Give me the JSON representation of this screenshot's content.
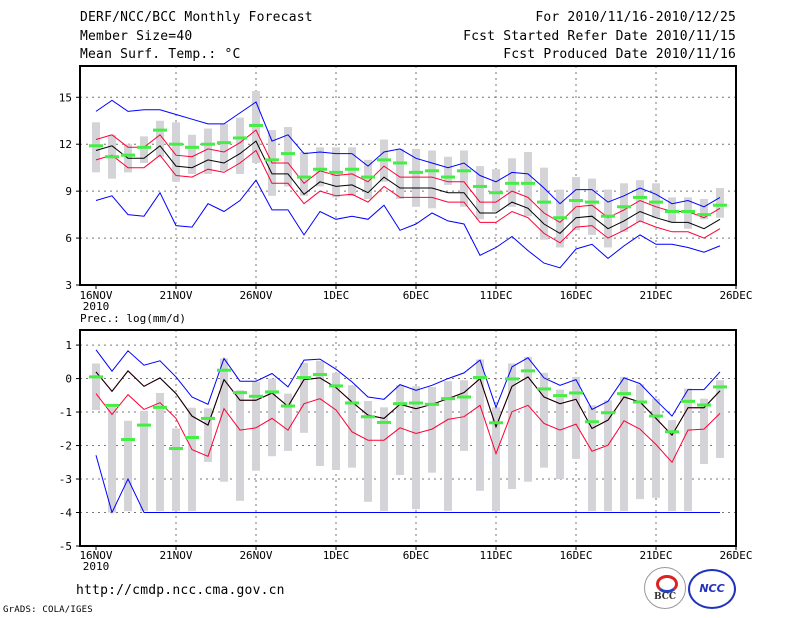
{
  "header": {
    "title": "DERF/NCC/BCC Monthly Forecast",
    "member_size": "Member Size=40",
    "variable": "Mean Surf. Temp.: °C",
    "period": "For 2010/11/16-2010/12/25",
    "fcst_started": "Fcst Started Refer Date 2010/11/15",
    "fcst_produced": "Fcst Produced Date 2010/11/16"
  },
  "footer": {
    "url": "http://cmdp.ncc.cma.gov.cn",
    "credit": "GrADS: COLA/IGES",
    "logo_bcc": "BCC",
    "logo_ncc": "NCC"
  },
  "colors": {
    "envelope": "#0000ff",
    "spread": "#ff0033",
    "mean": "#000000",
    "control": "#44ee44",
    "box": "#d3d3d8",
    "grid": "#777777"
  },
  "chart_data": [
    {
      "type": "line",
      "title": "Mean Surf. Temp.: °C",
      "xlabel": "",
      "ylabel": "°C",
      "x_start": "2010-11-16",
      "n_days": 40,
      "x_ticks": [
        "16NOV",
        "21NOV",
        "26NOV",
        "1DEC",
        "6DEC",
        "11DEC",
        "16DEC",
        "21DEC",
        "26DEC"
      ],
      "x_year_label": "2010",
      "y_ticks": [
        3,
        6,
        9,
        12,
        15
      ],
      "ylim": [
        3,
        17
      ],
      "grid": true,
      "series": [
        {
          "name": "max",
          "color": "#0000ff",
          "values": [
            14.1,
            14.8,
            14.1,
            14.2,
            14.2,
            13.9,
            13.6,
            13.3,
            13.3,
            14.0,
            14.7,
            12.2,
            12.6,
            11.4,
            11.5,
            11.4,
            11.4,
            10.6,
            11.5,
            11.7,
            11.1,
            10.8,
            10.5,
            10.8,
            10.0,
            9.6,
            10.2,
            10.1,
            9.2,
            8.2,
            9.1,
            9.1,
            8.3,
            8.7,
            9.2,
            8.8,
            8.2,
            8.4,
            8.0,
            8.6
          ]
        },
        {
          "name": "min",
          "color": "#0000ff",
          "values": [
            8.4,
            8.7,
            7.5,
            7.4,
            8.9,
            6.8,
            6.7,
            8.2,
            7.7,
            8.4,
            9.7,
            7.8,
            7.8,
            6.2,
            7.7,
            7.2,
            7.4,
            7.2,
            8.1,
            6.5,
            6.9,
            7.6,
            7.1,
            6.9,
            4.9,
            5.4,
            6.1,
            5.2,
            4.4,
            4.1,
            5.3,
            5.6,
            4.7,
            5.5,
            6.2,
            5.6,
            5.6,
            5.4,
            5.1,
            5.5
          ]
        },
        {
          "name": "upper",
          "color": "#ff0033",
          "values": [
            12.3,
            12.6,
            11.8,
            11.8,
            12.6,
            11.3,
            11.2,
            11.7,
            11.5,
            12.1,
            12.9,
            10.8,
            10.8,
            9.5,
            10.3,
            10.0,
            10.1,
            9.6,
            10.6,
            9.9,
            9.9,
            9.9,
            9.6,
            9.6,
            8.3,
            8.3,
            9.0,
            8.6,
            7.6,
            7.0,
            8.0,
            8.1,
            7.3,
            7.8,
            8.4,
            8.0,
            7.7,
            7.7,
            7.3,
            7.9
          ]
        },
        {
          "name": "lower",
          "color": "#ff0033",
          "values": [
            11.0,
            11.3,
            10.5,
            10.5,
            11.3,
            10.0,
            9.9,
            10.4,
            10.2,
            10.8,
            11.6,
            9.5,
            9.5,
            8.2,
            9.0,
            8.7,
            8.8,
            8.3,
            9.3,
            8.6,
            8.6,
            8.6,
            8.3,
            8.3,
            7.0,
            7.0,
            7.7,
            7.3,
            6.3,
            5.7,
            6.7,
            6.8,
            6.0,
            6.5,
            7.1,
            6.7,
            6.4,
            6.4,
            6.0,
            6.6
          ]
        },
        {
          "name": "mean",
          "color": "#000000",
          "values": [
            11.6,
            11.9,
            11.1,
            11.1,
            11.9,
            10.6,
            10.5,
            11.0,
            10.8,
            11.4,
            12.2,
            10.1,
            10.1,
            8.8,
            9.6,
            9.3,
            9.4,
            8.9,
            9.9,
            9.2,
            9.2,
            9.2,
            8.9,
            8.9,
            7.6,
            7.6,
            8.3,
            7.9,
            6.9,
            6.3,
            7.3,
            7.4,
            6.6,
            7.1,
            7.7,
            7.3,
            7.0,
            7.0,
            6.6,
            7.2
          ]
        }
      ],
      "control": [
        11.9,
        11.2,
        11.3,
        11.8,
        12.9,
        12.0,
        11.8,
        12.0,
        12.1,
        12.4,
        13.2,
        11.0,
        11.4,
        9.9,
        10.4,
        10.2,
        10.4,
        9.9,
        11.0,
        10.8,
        10.2,
        10.3,
        9.9,
        10.3,
        9.3,
        8.9,
        9.5,
        9.5,
        8.3,
        7.3,
        8.4,
        8.3,
        7.4,
        8.0,
        8.6,
        8.3,
        7.7,
        7.7,
        7.5,
        8.1
      ],
      "box_low": [
        10.2,
        9.8,
        10.2,
        10.8,
        11.2,
        9.6,
        10.1,
        10.1,
        10.3,
        10.1,
        10.8,
        8.7,
        9.3,
        8.7,
        9.3,
        8.6,
        8.7,
        8.5,
        9.6,
        8.5,
        8.0,
        7.9,
        9.4,
        8.0,
        7.2,
        7.7,
        8.0,
        7.4,
        5.9,
        5.4,
        6.5,
        6.2,
        5.4,
        6.4,
        7.0,
        7.3,
        7.0,
        6.6,
        7.2,
        7.3
      ],
      "box_high": [
        13.4,
        12.6,
        12.0,
        12.5,
        13.5,
        13.4,
        12.6,
        13.0,
        13.3,
        13.7,
        15.4,
        12.9,
        13.1,
        11.5,
        11.8,
        11.8,
        11.8,
        11.0,
        12.3,
        11.7,
        11.7,
        11.6,
        11.2,
        11.6,
        10.6,
        10.4,
        11.1,
        11.5,
        10.5,
        9.1,
        9.9,
        9.8,
        9.1,
        9.5,
        9.7,
        9.5,
        8.6,
        8.6,
        8.5,
        9.2
      ]
    },
    {
      "type": "line",
      "title": "Prec.: log(mm/d)",
      "xlabel": "",
      "ylabel": "log(mm/d)",
      "x_start": "2010-11-16",
      "n_days": 40,
      "x_ticks": [
        "16NOV",
        "21NOV",
        "26NOV",
        "1DEC",
        "6DEC",
        "11DEC",
        "16DEC",
        "21DEC",
        "26DEC"
      ],
      "x_year_label": "2010",
      "y_ticks": [
        -5,
        -4,
        -3,
        -2,
        -1,
        0,
        1
      ],
      "ylim": [
        -5,
        1.45
      ],
      "grid": true,
      "series": [
        {
          "name": "max",
          "color": "#0000ff",
          "values": [
            0.86,
            0.22,
            0.83,
            0.4,
            0.53,
            0.05,
            -0.55,
            -0.77,
            0.6,
            -0.08,
            -0.08,
            0.15,
            -0.25,
            0.55,
            0.58,
            0.28,
            -0.1,
            -0.55,
            -0.62,
            -0.18,
            -0.35,
            -0.2,
            0,
            0.17,
            0.55,
            -0.86,
            0.35,
            0.62,
            0.02,
            -0.2,
            -0.03,
            -0.92,
            -0.68,
            0.02,
            -0.15,
            -0.65,
            -1.12,
            -0.33,
            -0.33,
            0.2
          ]
        },
        {
          "name": "min",
          "color": "#0000ff",
          "values": [
            -2.29,
            -4,
            -3.0,
            -4,
            -4,
            -4,
            -4,
            -4,
            -4,
            -4,
            -4,
            -4,
            -4,
            -4,
            -4,
            -4,
            -4,
            -4,
            -4,
            -4,
            -4,
            -4,
            -4,
            -4,
            -4,
            -4,
            -4,
            -4,
            -4,
            -4,
            -4,
            -4,
            -4,
            -4,
            -4,
            -4,
            -4,
            -4,
            -4,
            -4
          ]
        },
        {
          "name": "upper",
          "color": "#ff0033",
          "values": [
            0.2,
            -0.38,
            0.23,
            -0.23,
            0.02,
            -0.45,
            -1.12,
            -1.39,
            -0.03,
            -0.65,
            -0.65,
            -0.43,
            -0.83,
            -0.03,
            0.02,
            -0.27,
            -0.7,
            -1.09,
            -1.19,
            -0.77,
            -0.9,
            -0.77,
            -0.6,
            -0.42,
            0,
            -1.44,
            -0.23,
            0.05,
            -0.55,
            -0.75,
            -0.62,
            -1.49,
            -1.24,
            -0.55,
            -0.7,
            -1.19,
            -1.69,
            -0.87,
            -0.87,
            -0.37
          ]
        },
        {
          "name": "lower",
          "color": "#ff0033",
          "values": [
            -0.45,
            -1.07,
            -0.48,
            -0.92,
            -0.72,
            -1.19,
            -2.12,
            -2.32,
            -0.9,
            -1.54,
            -1.47,
            -1.19,
            -1.54,
            -0.75,
            -0.6,
            -0.94,
            -1.59,
            -1.84,
            -1.84,
            -1.47,
            -1.64,
            -1.51,
            -1.22,
            -1.14,
            -0.8,
            -2.24,
            -0.99,
            -0.8,
            -1.34,
            -1.54,
            -1.36,
            -2.17,
            -1.99,
            -1.26,
            -1.51,
            -1.97,
            -2.5,
            -1.54,
            -1.51,
            -1.04
          ]
        },
        {
          "name": "mean",
          "color": "#000000",
          "values": [
            0.2,
            -0.38,
            0.23,
            -0.23,
            0.02,
            -0.45,
            -1.12,
            -1.39,
            -0.03,
            -0.65,
            -0.65,
            -0.43,
            -0.83,
            -0.03,
            0.02,
            -0.27,
            -0.7,
            -1.09,
            -1.19,
            -0.77,
            -0.9,
            -0.77,
            -0.6,
            -0.42,
            0,
            -1.44,
            -0.23,
            0.05,
            -0.55,
            -0.75,
            -0.62,
            -1.49,
            -1.24,
            -0.55,
            -0.7,
            -1.19,
            -1.69,
            -0.87,
            -0.87,
            -0.37
          ]
        }
      ],
      "control": [
        0.05,
        -0.8,
        -1.82,
        -1.39,
        -0.86,
        -2.09,
        -1.76,
        -1.19,
        0.25,
        -0.42,
        -0.53,
        -0.4,
        -0.82,
        0.03,
        0.12,
        -0.22,
        -0.73,
        -1.14,
        -1.31,
        -0.75,
        -0.73,
        -0.77,
        -0.6,
        -0.55,
        0.03,
        -1.32,
        -0.01,
        0.23,
        -0.31,
        -0.51,
        -0.43,
        -1.29,
        -1.02,
        -0.45,
        -0.7,
        -1.12,
        -1.59,
        -0.68,
        -0.79,
        -0.25
      ],
      "box_low": [
        -0.94,
        -4,
        -3.96,
        -3.96,
        -3.96,
        -3.96,
        -3.96,
        -2.49,
        -3.08,
        -3.65,
        -2.75,
        -2.32,
        -2.16,
        -1.62,
        -2.61,
        -2.73,
        -2.66,
        -3.68,
        -3.96,
        -2.88,
        -3.9,
        -2.81,
        -3.95,
        -2.16,
        -3.35,
        -3.96,
        -3.3,
        -3.08,
        -2.66,
        -3.0,
        -2.4,
        -3.96,
        -3.96,
        -3.96,
        -3.6,
        -3.56,
        -3.96,
        -3.96,
        -2.55,
        -2.37
      ],
      "box_high": [
        0.45,
        -0.8,
        -1.26,
        -0.97,
        -0.43,
        -1.49,
        -0.87,
        -0.89,
        0.6,
        -0.35,
        -0.1,
        0,
        -0.45,
        0.47,
        0.53,
        0.17,
        -0.2,
        -0.67,
        -0.86,
        -0.2,
        -0.23,
        -0.25,
        -0.08,
        -0.05,
        0.57,
        -0.86,
        0.45,
        0.65,
        0.17,
        -0.33,
        0.05,
        -0.8,
        -0.65,
        0.05,
        -0.17,
        -0.6,
        -1.24,
        -0.3,
        -0.6,
        -0.05
      ]
    }
  ]
}
